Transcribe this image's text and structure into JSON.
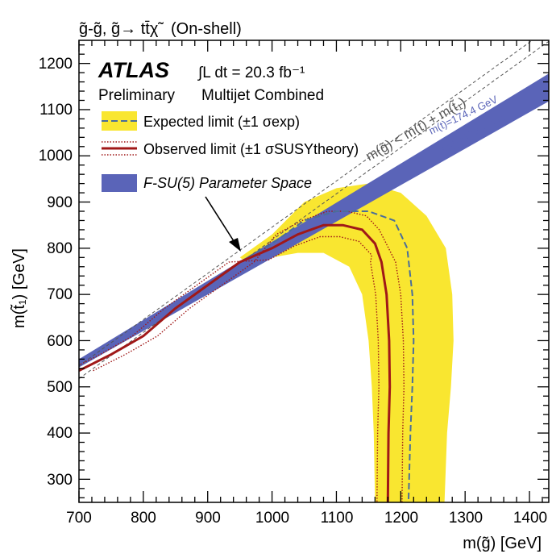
{
  "chart_data": {
    "type": "line",
    "title": "g̃-g̃, g̃→ tt̄χ̃⁰₁ (On-shell)",
    "experiment": "ATLAS",
    "status": "Preliminary",
    "luminosity": "∫L dt = 20.3 fb⁻¹",
    "analysis": "Multijet Combined",
    "xlabel": "m(g̃) [GeV]",
    "ylabel": "m(t̃₁) [GeV]",
    "xlim": [
      700,
      1430
    ],
    "ylim": [
      250,
      1250
    ],
    "xticks": [
      "700",
      "800",
      "900",
      "1000",
      "1100",
      "1200",
      "1300",
      "1400"
    ],
    "yticks": [
      "300",
      "400",
      "500",
      "600",
      "700",
      "800",
      "900",
      "1000",
      "1100",
      "1200"
    ],
    "legend": {
      "expected": "Expected limit (±1 σexp)",
      "observed": "Observed limit (±1 σSUSYtheory)",
      "fsu5": "F-SU(5) Parameter Space"
    },
    "kinematic_label": "m(g̃) < m(t) + m(t̃₁)",
    "band_labels": [
      "m(t)=174.4 GeV",
      "m(t)=172.2 GeV"
    ],
    "colors": {
      "yellow_band": "#f9e630",
      "observed": "#a01818",
      "expected": "#4a6e9a",
      "fsu5": "#5a64b8"
    },
    "series": [
      {
        "name": "Observed limit",
        "x": [
          700,
          750,
          800,
          850,
          900,
          950,
          1000,
          1040,
          1080,
          1110,
          1140,
          1160,
          1170,
          1178,
          1182,
          1183,
          1181,
          1180
        ],
        "y": [
          535,
          570,
          610,
          670,
          720,
          770,
          800,
          830,
          850,
          850,
          840,
          810,
          770,
          700,
          600,
          500,
          400,
          250
        ]
      },
      {
        "name": "Expected limit",
        "x": [
          950,
          1000,
          1050,
          1100,
          1150,
          1190,
          1210,
          1218,
          1220,
          1218,
          1215,
          1212
        ],
        "y": [
          770,
          810,
          860,
          880,
          880,
          860,
          800,
          700,
          600,
          500,
          400,
          250
        ]
      }
    ]
  },
  "page": {
    "title_prefix": "g̃-g̃, g̃→ tt̄χ̃",
    "title_suffix": " (On-shell)"
  }
}
